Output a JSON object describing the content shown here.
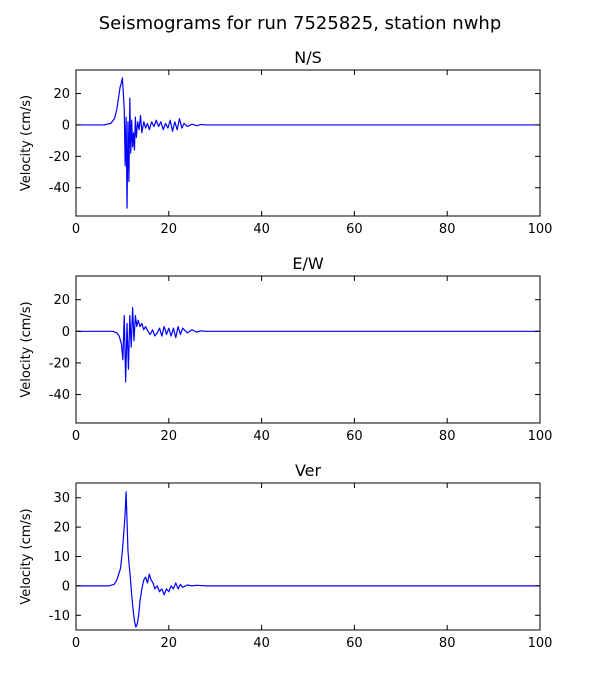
{
  "figure": {
    "title": "Seismograms for run 7525825, station nwhp"
  },
  "chart_data": [
    {
      "type": "line",
      "title": "N/S",
      "xlabel": "",
      "ylabel": "Velocity (cm/s)",
      "xlim": [
        0,
        100
      ],
      "ylim": [
        -58,
        35
      ],
      "xticks": [
        0,
        20,
        40,
        60,
        80,
        100
      ],
      "yticks": [
        20,
        0,
        -20,
        -40
      ],
      "grid": false,
      "color": "#0000ff",
      "series": [
        {
          "x": [
            0,
            6,
            7.5,
            8.3,
            8.8,
            9.2,
            9.5,
            9.8,
            10.0,
            10.2,
            10.4,
            10.6,
            10.8,
            11.0,
            11.2,
            11.4,
            11.6,
            11.8,
            12.0,
            12.2,
            12.4,
            12.6,
            12.8,
            13.0,
            13.3,
            13.6,
            13.9,
            14.2,
            14.6,
            15.0,
            15.4,
            15.8,
            16.3,
            16.8,
            17.3,
            17.8,
            18.3,
            18.8,
            19.3,
            19.8,
            20.3,
            20.8,
            21.3,
            21.8,
            22.3,
            22.8,
            23.3,
            24.0,
            25.0,
            26.0,
            27.0,
            28.0,
            30.0,
            40,
            60,
            80,
            100
          ],
          "y": [
            0,
            0,
            1,
            4,
            10,
            18,
            24,
            27,
            30,
            20,
            10,
            -26,
            5,
            -53,
            2,
            -36,
            17,
            -18,
            3,
            -14,
            -5,
            -16,
            5,
            -8,
            2,
            -3,
            6,
            -5,
            2,
            -2,
            1,
            -3,
            2,
            -1,
            3,
            -1,
            2,
            -3,
            1,
            -2,
            3,
            -4,
            2,
            -3,
            4,
            -2,
            1,
            -1,
            0.5,
            -0.5,
            0.3,
            0,
            0,
            0,
            0,
            0,
            0
          ]
        }
      ]
    },
    {
      "type": "line",
      "title": "E/W",
      "xlabel": "",
      "ylabel": "Velocity (cm/s)",
      "xlim": [
        0,
        100
      ],
      "ylim": [
        -58,
        35
      ],
      "xticks": [
        0,
        20,
        40,
        60,
        80,
        100
      ],
      "yticks": [
        20,
        0,
        -20,
        -40
      ],
      "grid": false,
      "color": "#0000ff",
      "series": [
        {
          "x": [
            0,
            8,
            8.8,
            9.3,
            9.8,
            10.1,
            10.4,
            10.7,
            11.0,
            11.3,
            11.6,
            11.9,
            12.2,
            12.5,
            12.8,
            13.1,
            13.4,
            13.8,
            14.2,
            14.6,
            15.0,
            15.5,
            16.0,
            16.5,
            17.0,
            17.5,
            18.0,
            18.5,
            19.0,
            19.5,
            20.0,
            20.5,
            21.0,
            21.5,
            22.0,
            22.5,
            23.0,
            24.0,
            25.0,
            26.0,
            27.0,
            28.0,
            30.0,
            40,
            60,
            80,
            100
          ],
          "y": [
            0,
            0,
            -1,
            -3,
            -8,
            -18,
            10,
            -32,
            5,
            -24,
            10,
            -10,
            15,
            -6,
            10,
            3,
            7,
            3,
            5,
            1,
            3,
            0,
            -2,
            1,
            -3,
            -1,
            2,
            -3,
            3,
            -2,
            2,
            -3,
            2,
            -4,
            3,
            -2,
            2,
            -1,
            1,
            -0.5,
            0.3,
            0,
            0,
            0,
            0,
            0,
            0
          ]
        }
      ]
    },
    {
      "type": "line",
      "title": "Ver",
      "xlabel": "",
      "ylabel": "Velocity (cm/s)",
      "xlim": [
        0,
        100
      ],
      "ylim": [
        -15,
        35
      ],
      "xticks": [
        0,
        20,
        40,
        60,
        80,
        100
      ],
      "yticks": [
        30,
        20,
        10,
        0,
        -10
      ],
      "grid": false,
      "color": "#0000ff",
      "series": [
        {
          "x": [
            0,
            7,
            8.2,
            8.8,
            9.2,
            9.6,
            10.0,
            10.3,
            10.6,
            10.8,
            11.0,
            11.2,
            11.4,
            11.7,
            12.0,
            12.3,
            12.6,
            12.9,
            13.2,
            13.5,
            13.8,
            14.2,
            14.6,
            15.0,
            15.4,
            15.8,
            16.2,
            16.6,
            17.0,
            17.5,
            18.0,
            18.5,
            19.0,
            19.5,
            20.0,
            20.5,
            21.0,
            21.5,
            22.0,
            22.5,
            23.0,
            24.0,
            25.0,
            26.0,
            28.0,
            30.0,
            40,
            60,
            80,
            100
          ],
          "y": [
            0,
            0,
            0.5,
            2,
            4,
            6,
            12,
            18,
            25,
            32,
            22,
            12,
            8,
            3,
            -3,
            -8,
            -12,
            -14,
            -13,
            -10,
            -5,
            -1,
            2,
            3,
            1,
            4,
            2,
            1,
            -1,
            0,
            -2,
            -1,
            -3,
            -1,
            -2,
            0,
            -1,
            1,
            -1,
            0.5,
            -0.5,
            0.3,
            0,
            0.2,
            0,
            0,
            0,
            0,
            0,
            0
          ]
        }
      ]
    }
  ]
}
